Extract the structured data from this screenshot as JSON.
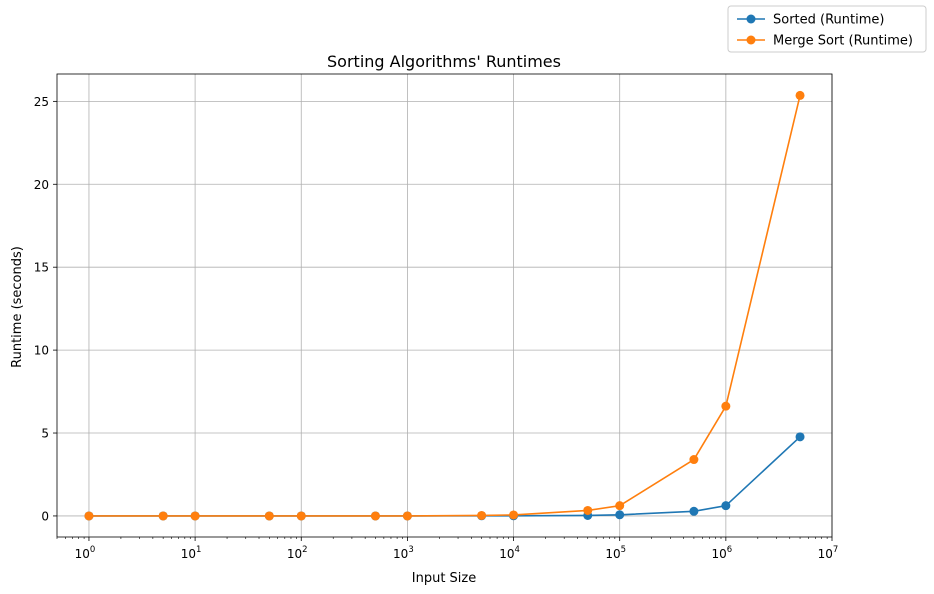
{
  "chart_data": {
    "type": "line",
    "title": "Sorting Algorithms' Runtimes",
    "xlabel": "Input Size",
    "ylabel": "Runtime (seconds)",
    "xscale": "log",
    "xlim": [
      0.5,
      10000000
    ],
    "ylim": [
      -1.27,
      26.65
    ],
    "grid": true,
    "legend_position": "top-right (outside plot)",
    "x": [
      1,
      5,
      10,
      50,
      100,
      500,
      1000,
      5000,
      10000,
      50000,
      100000,
      500000,
      1000000,
      5000000
    ],
    "x_ticks": [
      {
        "value": 1,
        "base": "10",
        "exp": "0"
      },
      {
        "value": 10,
        "base": "10",
        "exp": "1"
      },
      {
        "value": 100,
        "base": "10",
        "exp": "2"
      },
      {
        "value": 1000,
        "base": "10",
        "exp": "3"
      },
      {
        "value": 10000,
        "base": "10",
        "exp": "4"
      },
      {
        "value": 100000,
        "base": "10",
        "exp": "5"
      },
      {
        "value": 1000000,
        "base": "10",
        "exp": "6"
      },
      {
        "value": 10000000,
        "base": "10",
        "exp": "7"
      }
    ],
    "y_ticks": [
      {
        "value": 0,
        "label": "0"
      },
      {
        "value": 5,
        "label": "5"
      },
      {
        "value": 10,
        "label": "10"
      },
      {
        "value": 15,
        "label": "15"
      },
      {
        "value": 20,
        "label": "20"
      },
      {
        "value": 25,
        "label": "25"
      }
    ],
    "series": [
      {
        "name": "Sorted (Runtime)",
        "color": "#1f77b4",
        "values": [
          0,
          0,
          0,
          0,
          0,
          0,
          0,
          0.01,
          0.01,
          0.03,
          0.07,
          0.28,
          0.62,
          4.77
        ]
      },
      {
        "name": "Merge Sort (Runtime)",
        "color": "#ff7f0e",
        "values": [
          0,
          0,
          0,
          0,
          0,
          0,
          0,
          0.03,
          0.06,
          0.33,
          0.62,
          3.4,
          6.62,
          25.36
        ]
      }
    ]
  }
}
